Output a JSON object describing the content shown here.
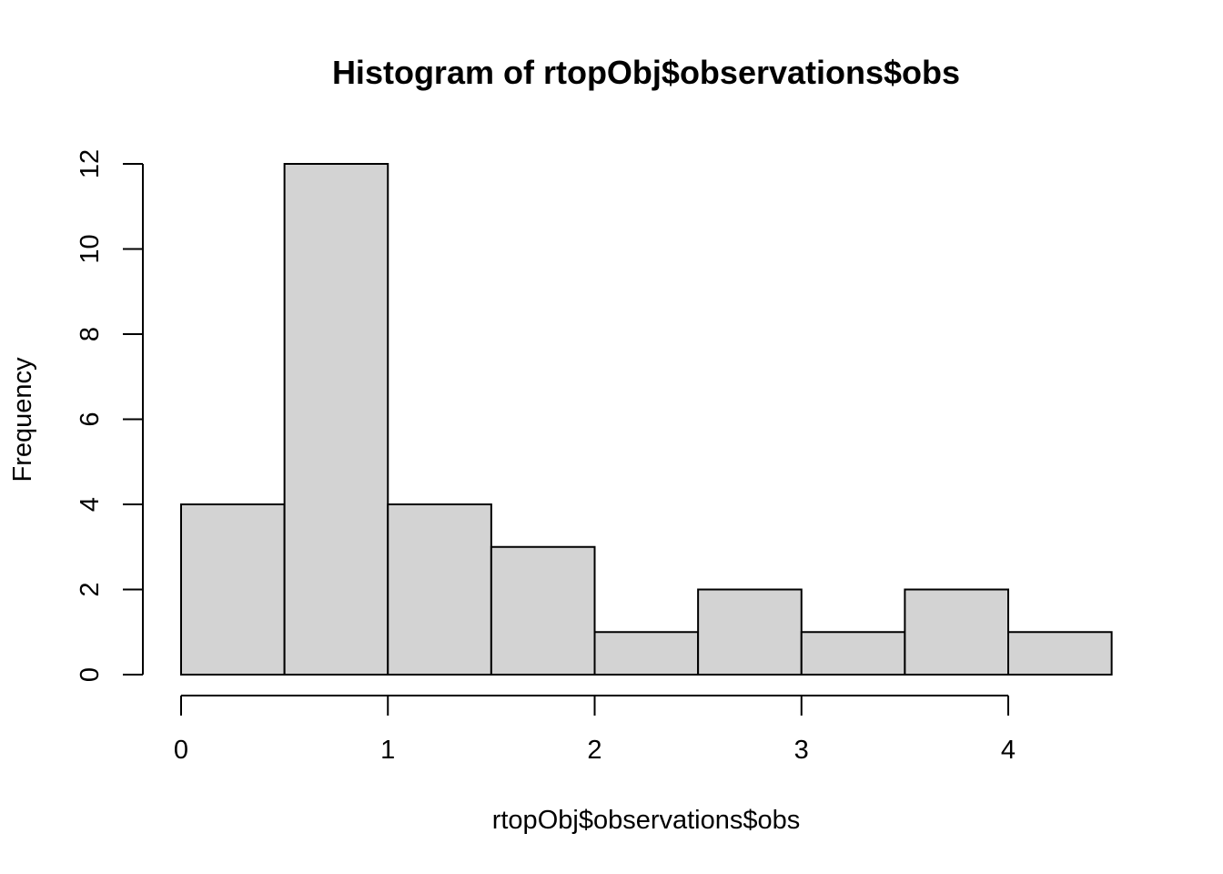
{
  "chart_data": {
    "type": "bar",
    "title": "Histogram of rtopObj$observations$obs",
    "xlabel": "rtopObj$observations$obs",
    "ylabel": "Frequency",
    "bins": [
      {
        "start": 0.0,
        "end": 0.5,
        "count": 4
      },
      {
        "start": 0.5,
        "end": 1.0,
        "count": 12
      },
      {
        "start": 1.0,
        "end": 1.5,
        "count": 4
      },
      {
        "start": 1.5,
        "end": 2.0,
        "count": 3
      },
      {
        "start": 2.0,
        "end": 2.5,
        "count": 1
      },
      {
        "start": 2.5,
        "end": 3.0,
        "count": 2
      },
      {
        "start": 3.0,
        "end": 3.5,
        "count": 1
      },
      {
        "start": 3.5,
        "end": 4.0,
        "count": 2
      },
      {
        "start": 4.0,
        "end": 4.5,
        "count": 1
      }
    ],
    "xlim": [
      0,
      4.5
    ],
    "ylim": [
      0,
      12
    ],
    "xticks": [
      0,
      1,
      2,
      3,
      4
    ],
    "xtick_labels": [
      "0",
      "1",
      "2",
      "3",
      "4"
    ],
    "yticks": [
      0,
      2,
      4,
      6,
      8,
      10,
      12
    ],
    "ytick_labels": [
      "0",
      "2",
      "4",
      "6",
      "8",
      "10",
      "12"
    ],
    "grid": false,
    "bar_color": "#d3d3d3",
    "edge_color": "#000000"
  }
}
